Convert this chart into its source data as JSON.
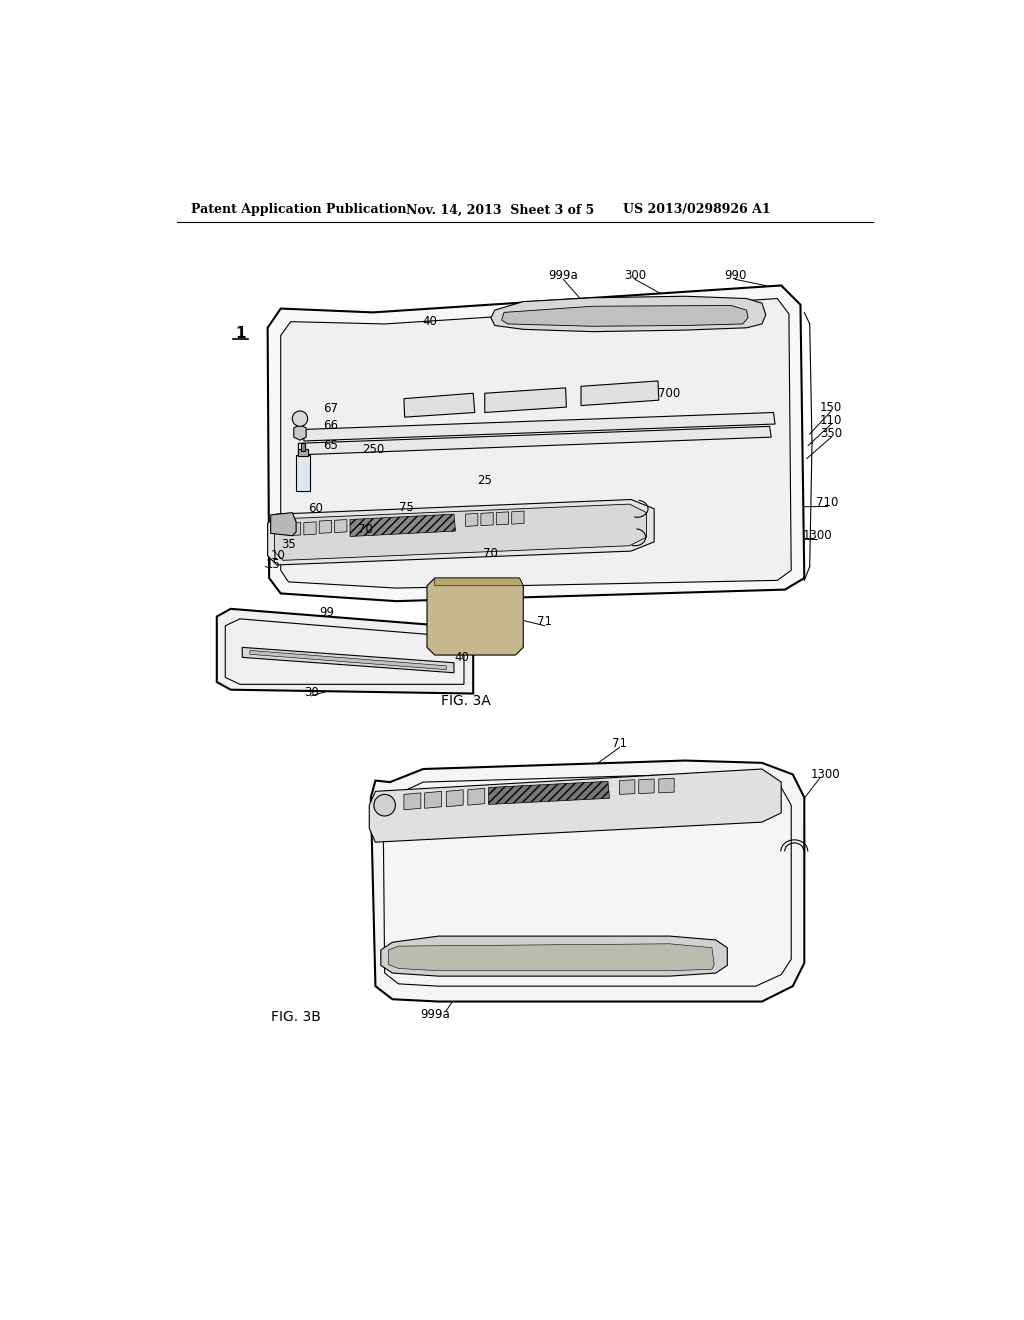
{
  "bg_color": "#ffffff",
  "header_left": "Patent Application Publication",
  "header_mid": "Nov. 14, 2013  Sheet 3 of 5",
  "header_right": "US 2013/0298926 A1",
  "title_fontsize": 9,
  "anno_fontsize": 8.5,
  "fig3a_label": "FIG. 3A",
  "fig3b_label": "FIG. 3B"
}
